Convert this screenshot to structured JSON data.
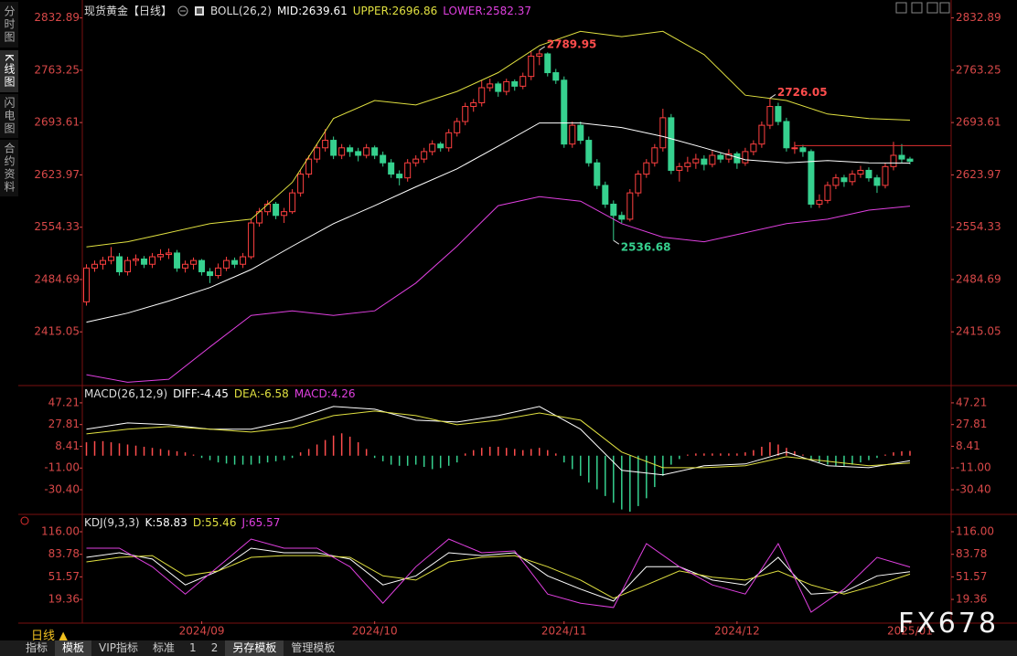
{
  "chart_data": [
    {
      "type": "candlestick",
      "title": "现货黄金【日线】",
      "indicator": "BOLL(26,2)",
      "up_color": "#ff4040",
      "down_color": "#36d18f",
      "xlim": [
        -0.5,
        105
      ],
      "ylim": [
        2346,
        2847
      ],
      "yticks": [
        2832.89,
        2763.25,
        2693.61,
        2623.97,
        2554.33,
        2484.69,
        2415.05
      ],
      "candles": [
        [
          2455,
          2505,
          2450,
          2500
        ],
        [
          2500,
          2510,
          2495,
          2505
        ],
        [
          2505,
          2515,
          2498,
          2510
        ],
        [
          2510,
          2528,
          2505,
          2515
        ],
        [
          2515,
          2520,
          2490,
          2495
        ],
        [
          2495,
          2515,
          2490,
          2510
        ],
        [
          2510,
          2518,
          2503,
          2512
        ],
        [
          2512,
          2516,
          2500,
          2505
        ],
        [
          2505,
          2520,
          2500,
          2515
        ],
        [
          2515,
          2525,
          2510,
          2518
        ],
        [
          2518,
          2526,
          2512,
          2520
        ],
        [
          2520,
          2524,
          2495,
          2500
        ],
        [
          2500,
          2510,
          2494,
          2505
        ],
        [
          2505,
          2514,
          2498,
          2510
        ],
        [
          2510,
          2512,
          2490,
          2495
        ],
        [
          2495,
          2500,
          2480,
          2490
        ],
        [
          2490,
          2506,
          2486,
          2500
        ],
        [
          2500,
          2515,
          2496,
          2510
        ],
        [
          2510,
          2514,
          2500,
          2505
        ],
        [
          2505,
          2520,
          2500,
          2515
        ],
        [
          2515,
          2565,
          2512,
          2560
        ],
        [
          2560,
          2580,
          2555,
          2575
        ],
        [
          2575,
          2590,
          2570,
          2585
        ],
        [
          2585,
          2588,
          2565,
          2570
        ],
        [
          2570,
          2580,
          2560,
          2575
        ],
        [
          2575,
          2605,
          2572,
          2600
        ],
        [
          2600,
          2630,
          2595,
          2625
        ],
        [
          2625,
          2650,
          2620,
          2645
        ],
        [
          2645,
          2665,
          2640,
          2660
        ],
        [
          2660,
          2685,
          2655,
          2670
        ],
        [
          2670,
          2675,
          2645,
          2650
        ],
        [
          2650,
          2665,
          2645,
          2660
        ],
        [
          2660,
          2664,
          2648,
          2655
        ],
        [
          2655,
          2660,
          2642,
          2650
        ],
        [
          2650,
          2665,
          2646,
          2660
        ],
        [
          2660,
          2663,
          2645,
          2650
        ],
        [
          2650,
          2655,
          2635,
          2640
        ],
        [
          2640,
          2645,
          2620,
          2625
        ],
        [
          2625,
          2630,
          2610,
          2620
        ],
        [
          2620,
          2645,
          2615,
          2640
        ],
        [
          2640,
          2650,
          2635,
          2645
        ],
        [
          2645,
          2660,
          2640,
          2655
        ],
        [
          2655,
          2670,
          2650,
          2665
        ],
        [
          2665,
          2668,
          2655,
          2660
        ],
        [
          2660,
          2685,
          2655,
          2680
        ],
        [
          2680,
          2700,
          2675,
          2695
        ],
        [
          2695,
          2720,
          2690,
          2715
        ],
        [
          2715,
          2725,
          2708,
          2720
        ],
        [
          2720,
          2750,
          2715,
          2740
        ],
        [
          2740,
          2752,
          2735,
          2745
        ],
        [
          2745,
          2748,
          2728,
          2735
        ],
        [
          2735,
          2752,
          2730,
          2748
        ],
        [
          2748,
          2751,
          2736,
          2742
        ],
        [
          2742,
          2760,
          2738,
          2755
        ],
        [
          2755,
          2788,
          2750,
          2782
        ],
        [
          2782,
          2789.95,
          2770,
          2785
        ],
        [
          2785,
          2787,
          2755,
          2760
        ],
        [
          2760,
          2765,
          2745,
          2750
        ],
        [
          2750,
          2755,
          2660,
          2665
        ],
        [
          2665,
          2695,
          2660,
          2690
        ],
        [
          2690,
          2695,
          2665,
          2670
        ],
        [
          2670,
          2675,
          2635,
          2640
        ],
        [
          2640,
          2645,
          2605,
          2610
        ],
        [
          2610,
          2615,
          2580,
          2585
        ],
        [
          2585,
          2590,
          2536.68,
          2570
        ],
        [
          2570,
          2575,
          2560,
          2565
        ],
        [
          2565,
          2605,
          2562,
          2600
        ],
        [
          2600,
          2630,
          2595,
          2625
        ],
        [
          2625,
          2645,
          2620,
          2640
        ],
        [
          2640,
          2665,
          2635,
          2660
        ],
        [
          2660,
          2712,
          2655,
          2700
        ],
        [
          2700,
          2705,
          2625,
          2630
        ],
        [
          2630,
          2640,
          2615,
          2635
        ],
        [
          2635,
          2648,
          2628,
          2640
        ],
        [
          2640,
          2652,
          2632,
          2645
        ],
        [
          2645,
          2650,
          2630,
          2638
        ],
        [
          2638,
          2656,
          2634,
          2650
        ],
        [
          2650,
          2654,
          2640,
          2645
        ],
        [
          2645,
          2658,
          2640,
          2652
        ],
        [
          2652,
          2655,
          2632,
          2640
        ],
        [
          2640,
          2660,
          2636,
          2655
        ],
        [
          2655,
          2670,
          2650,
          2665
        ],
        [
          2665,
          2695,
          2660,
          2690
        ],
        [
          2690,
          2726.05,
          2685,
          2715
        ],
        [
          2715,
          2720,
          2690,
          2695
        ],
        [
          2695,
          2700,
          2655,
          2660
        ],
        [
          2660,
          2668,
          2652,
          2660
        ],
        [
          2660,
          2664,
          2648,
          2655
        ],
        [
          2655,
          2658,
          2580,
          2585
        ],
        [
          2585,
          2598,
          2580,
          2590
        ],
        [
          2590,
          2615,
          2586,
          2610
        ],
        [
          2610,
          2625,
          2605,
          2620
        ],
        [
          2620,
          2624,
          2608,
          2615
        ],
        [
          2615,
          2630,
          2610,
          2625
        ],
        [
          2625,
          2636,
          2620,
          2630
        ],
        [
          2630,
          2634,
          2615,
          2620
        ],
        [
          2620,
          2624,
          2600,
          2610
        ],
        [
          2610,
          2640,
          2606,
          2635
        ],
        [
          2635,
          2668,
          2630,
          2650
        ],
        [
          2650,
          2665,
          2640,
          2645
        ],
        [
          2645,
          2648,
          2638,
          2642
        ]
      ],
      "lines": [
        {
          "name": "MID:2639.61",
          "color": "#ffffff",
          "x": [
            0,
            5,
            10,
            15,
            20,
            25,
            30,
            35,
            40,
            45,
            50,
            55,
            60,
            65,
            70,
            75,
            80,
            85,
            90,
            95,
            100
          ],
          "values": [
            2428,
            2440,
            2456,
            2474,
            2498,
            2529,
            2559,
            2583,
            2608,
            2632,
            2662,
            2693,
            2693,
            2687,
            2675,
            2660,
            2644,
            2640,
            2643,
            2640,
            2639.61
          ]
        },
        {
          "name": "UPPER:2696.86",
          "color": "#e0e040",
          "x": [
            0,
            5,
            10,
            15,
            20,
            25,
            30,
            35,
            40,
            45,
            50,
            55,
            60,
            65,
            70,
            75,
            80,
            85,
            90,
            95,
            100
          ],
          "values": [
            2528,
            2535,
            2547,
            2559,
            2565,
            2614,
            2699,
            2723,
            2717,
            2735,
            2760,
            2796,
            2815,
            2808,
            2815,
            2784,
            2730,
            2723,
            2705,
            2699,
            2696.86
          ]
        },
        {
          "name": "LOWER:2582.37",
          "color": "#e040e0",
          "x": [
            0,
            5,
            10,
            15,
            20,
            25,
            30,
            35,
            40,
            45,
            50,
            55,
            60,
            65,
            70,
            75,
            80,
            85,
            90,
            95,
            100
          ],
          "values": [
            2358,
            2348,
            2352,
            2395,
            2437,
            2443,
            2437,
            2443,
            2480,
            2529,
            2583,
            2595,
            2589,
            2559,
            2541,
            2535,
            2547,
            2559,
            2565,
            2577,
            2582.37
          ]
        }
      ],
      "annotations": [
        {
          "text": "2789.95",
          "x": 55,
          "y": 2789.95,
          "color": "#ff4d4d"
        },
        {
          "text": "2536.68",
          "x": 64,
          "y": 2536.68,
          "color": "#36d18f"
        },
        {
          "text": "2726.05",
          "x": 83,
          "y": 2726.05,
          "color": "#ff4d4d"
        }
      ],
      "hline": {
        "value": 2663,
        "start": 86,
        "color": "#e03030"
      }
    },
    {
      "type": "macd",
      "indicator": "MACD(26,12,9)",
      "xlim": [
        -0.5,
        105
      ],
      "ylim": [
        -51.6,
        60.2
      ],
      "yticks": [
        47.21,
        27.81,
        8.41,
        {
          "value": -11,
          "label": "-11.00"
        },
        {
          "value": -30.4,
          "label": "-30.40"
        }
      ],
      "series": [
        {
          "name": "DIFF:-4.45",
          "color": "#ffffff",
          "x": [
            0,
            5,
            10,
            15,
            20,
            25,
            30,
            35,
            40,
            45,
            50,
            55,
            60,
            65,
            70,
            75,
            80,
            85,
            90,
            95,
            100
          ],
          "values": [
            23.6,
            29.3,
            27.6,
            23.6,
            23.6,
            31.7,
            44,
            41.5,
            31.7,
            30.1,
            35.8,
            44,
            23.6,
            -13.1,
            -17.2,
            -9,
            -7.4,
            3.2,
            -9,
            -10.7,
            -4.45
          ]
        },
        {
          "name": "DEA:-6.58",
          "color": "#e0e040",
          "x": [
            0,
            5,
            10,
            15,
            20,
            25,
            30,
            35,
            40,
            45,
            50,
            55,
            60,
            65,
            70,
            75,
            80,
            85,
            90,
            95,
            100
          ],
          "values": [
            19.5,
            23.6,
            26,
            23.6,
            21.1,
            25.2,
            35.8,
            39.9,
            35.8,
            27.6,
            31.7,
            38.2,
            31.7,
            3.2,
            -10.7,
            -10.7,
            -9,
            -0.9,
            -5,
            -9,
            -6.58
          ]
        }
      ],
      "bars": {
        "name": "MACD:4.26",
        "color": "#e040e0",
        "up_color": "#ff4d4d",
        "down_color": "#36d18f",
        "values": [
          12,
          13,
          13,
          12,
          11,
          10,
          9,
          8,
          7,
          6,
          5,
          4,
          3,
          1,
          -2,
          -4,
          -6,
          -7,
          -8,
          -8,
          -8,
          -7,
          -6,
          -5,
          -4,
          -2,
          3,
          6,
          10,
          14,
          18,
          20,
          17,
          12,
          6,
          -2,
          -5,
          -8,
          -9,
          -9,
          -8,
          -10,
          -12,
          -11,
          -9,
          -6,
          2,
          5,
          7,
          8,
          8,
          7,
          6,
          5,
          6,
          7,
          5,
          2,
          -6,
          -12,
          -18,
          -24,
          -30,
          -36,
          -42,
          -48,
          -50,
          -45,
          -38,
          -28,
          -18,
          -8,
          -3,
          1,
          2,
          2,
          2,
          2,
          2,
          2,
          3,
          5,
          8,
          12,
          10,
          7,
          4,
          1,
          -3,
          -6,
          -8,
          -9,
          -9,
          -8,
          -6,
          -4,
          -2,
          1,
          3,
          4,
          4.26
        ]
      }
    },
    {
      "type": "line",
      "indicator": "KDJ(9,3,3)",
      "xlim": [
        -0.5,
        105
      ],
      "ylim": [
        -11.9,
        138.2
      ],
      "yticks": [
        {
          "value": 116,
          "label": "116.00"
        },
        83.78,
        51.57,
        19.36
      ],
      "xticks": [
        {
          "value": 14,
          "label": "2024/09"
        },
        {
          "value": 35,
          "label": "2024/10"
        },
        {
          "value": 58,
          "label": "2024/11"
        },
        {
          "value": 79,
          "label": "2024/12"
        },
        {
          "value": 100,
          "label": "2025/01"
        }
      ],
      "series": [
        {
          "name": "K:58.83",
          "color": "#ffffff",
          "x": [
            0,
            4,
            8,
            12,
            16,
            20,
            24,
            28,
            32,
            36,
            40,
            44,
            48,
            52,
            56,
            60,
            64,
            68,
            72,
            76,
            80,
            84,
            88,
            92,
            96,
            100
          ],
          "values": [
            79.5,
            86,
            77,
            40,
            60,
            92.5,
            86,
            86,
            77,
            40,
            53,
            86,
            82,
            86,
            53,
            34,
            17,
            66,
            66,
            47,
            40,
            79.5,
            27,
            30,
            53,
            58.83
          ]
        },
        {
          "name": "D:55.46",
          "color": "#e0e040",
          "x": [
            0,
            4,
            8,
            12,
            16,
            20,
            24,
            28,
            32,
            36,
            40,
            44,
            48,
            52,
            56,
            60,
            64,
            68,
            72,
            76,
            80,
            84,
            88,
            92,
            96,
            100
          ],
          "values": [
            73,
            79.5,
            82,
            53,
            60,
            79.5,
            82,
            82,
            79.5,
            53,
            47,
            73,
            79.5,
            82,
            66,
            47,
            21,
            40,
            60,
            51,
            47,
            60,
            40,
            27,
            40,
            55.46
          ]
        },
        {
          "name": "J:65.57",
          "color": "#e040e0",
          "x": [
            0,
            4,
            8,
            12,
            16,
            20,
            24,
            28,
            32,
            36,
            40,
            44,
            48,
            52,
            56,
            60,
            64,
            68,
            72,
            76,
            80,
            84,
            88,
            92,
            96,
            100
          ],
          "values": [
            92.5,
            92.5,
            66,
            27,
            66,
            105.6,
            92.5,
            92.5,
            66,
            14,
            66,
            105.6,
            86,
            88.6,
            27,
            14,
            7.8,
            99,
            66,
            40,
            27,
            99,
            1.2,
            34,
            79.5,
            65.57
          ]
        }
      ]
    }
  ],
  "ui": {
    "side_tabs": [
      "分时图",
      "K线图",
      "闪电图",
      "合约资料"
    ],
    "period": "日线 ▲",
    "tabs": [
      "指标",
      "模板",
      "VIP指标",
      "标准",
      "1",
      "2",
      "另存模板",
      "管理模板"
    ],
    "watermark": "FX678"
  }
}
